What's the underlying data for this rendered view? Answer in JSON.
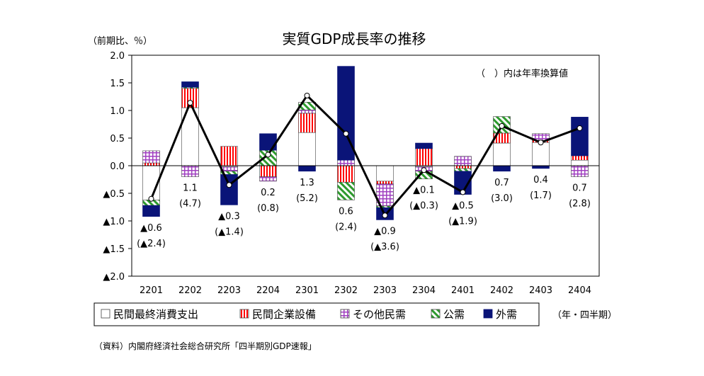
{
  "chart_data": {
    "type": "bar",
    "title": "実質GDP成長率の推移",
    "ylabel": "（前期比、％）",
    "xlabel": "（年・四半期）",
    "note": "（　）内は年率換算値",
    "source": "（資料）内閣府経済社会総合研究所「四半期別GDP速報」",
    "ylim": [
      -2.0,
      2.0
    ],
    "yticks": [
      "2.0",
      "1.5",
      "1.0",
      "0.5",
      "0.0",
      "▲0.5",
      "▲1.0",
      "▲1.5",
      "▲2.0"
    ],
    "categories": [
      "2201",
      "2202",
      "2203",
      "2204",
      "2301",
      "2302",
      "2303",
      "2304",
      "2401",
      "2402",
      "2403",
      "2404"
    ],
    "series": [
      {
        "name": "民間最終消費支出",
        "color": "#ffffff",
        "pattern": "plain",
        "values": [
          -0.62,
          1.05,
          -0.02,
          0.0,
          0.6,
          0.0,
          -0.28,
          -0.02,
          0.0,
          0.41,
          0.42,
          0.1
        ]
      },
      {
        "name": "民間企業設備",
        "color": "#ff0000",
        "pattern": "vertical-lines",
        "values": [
          0.05,
          0.35,
          0.35,
          -0.2,
          0.35,
          -0.3,
          -0.05,
          0.31,
          -0.05,
          0.18,
          0.04,
          0.08
        ]
      },
      {
        "name": "その他民需",
        "color": "#a040c0",
        "pattern": "grid",
        "values": [
          0.22,
          -0.2,
          -0.08,
          -0.08,
          0.06,
          0.1,
          -0.4,
          -0.08,
          0.17,
          0.0,
          0.12,
          -0.2
        ]
      },
      {
        "name": "公需",
        "color": "#2e9a2e",
        "pattern": "diagonal",
        "values": [
          -0.1,
          0.02,
          -0.06,
          0.28,
          0.14,
          -0.32,
          -0.03,
          -0.14,
          -0.05,
          0.3,
          0.0,
          0.0
        ]
      },
      {
        "name": "外需",
        "color": "#0a1478",
        "pattern": "solid",
        "values": [
          -0.2,
          0.1,
          -0.55,
          0.3,
          -0.1,
          1.7,
          -0.22,
          0.1,
          -0.42,
          -0.1,
          -0.05,
          0.7
        ]
      }
    ],
    "line": {
      "name": "実質GDP成長率",
      "values": [
        -0.6,
        1.14,
        -0.35,
        0.2,
        1.27,
        0.58,
        -0.9,
        -0.08,
        -0.48,
        0.72,
        0.42,
        0.68
      ]
    },
    "data_labels": [
      {
        "growth": "▲0.6",
        "annual": "(▲2.4)",
        "side": "below"
      },
      {
        "growth": "1.1",
        "annual": "(4.7)",
        "side": "below"
      },
      {
        "growth": "▲0.3",
        "annual": "(▲1.4)",
        "side": "below"
      },
      {
        "growth": "0.2",
        "annual": "(0.8)",
        "side": "below"
      },
      {
        "growth": "1.3",
        "annual": "(5.2)",
        "side": "below"
      },
      {
        "growth": "0.6",
        "annual": "(2.4)",
        "side": "below"
      },
      {
        "growth": "▲0.9",
        "annual": "(▲3.6)",
        "side": "below"
      },
      {
        "growth": "▲0.1",
        "annual": "(▲0.3)",
        "side": "below"
      },
      {
        "growth": "▲0.5",
        "annual": "(▲1.9)",
        "side": "below"
      },
      {
        "growth": "0.7",
        "annual": "(3.0)",
        "side": "below"
      },
      {
        "growth": "0.4",
        "annual": "(1.7)",
        "side": "below"
      },
      {
        "growth": "0.7",
        "annual": "(2.8)",
        "side": "below"
      }
    ]
  }
}
